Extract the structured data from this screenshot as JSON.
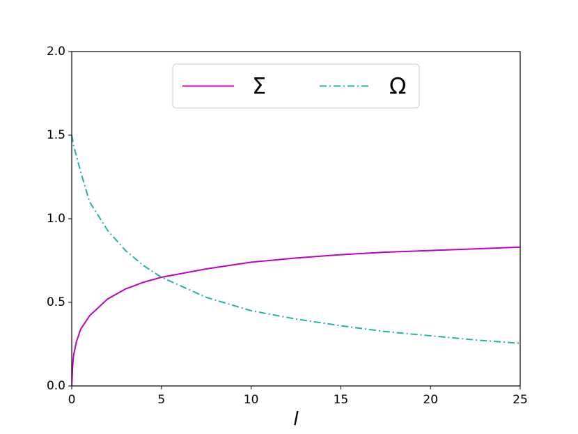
{
  "chart_data": {
    "type": "line",
    "x": [
      0,
      0.05,
      0.1,
      0.25,
      0.5,
      1,
      2,
      3,
      4,
      5,
      7.5,
      10,
      12.5,
      15,
      17.5,
      20,
      22.5,
      25
    ],
    "series": [
      {
        "name": "Σ",
        "color": "#bf00bf",
        "linestyle": "solid",
        "values": [
          0,
          0.12,
          0.18,
          0.26,
          0.34,
          0.42,
          0.52,
          0.58,
          0.62,
          0.65,
          0.7,
          0.74,
          0.765,
          0.785,
          0.8,
          0.81,
          0.82,
          0.83
        ]
      },
      {
        "name": "Ω",
        "color": "#20b2aa",
        "linestyle": "dashdot",
        "values": [
          1.5,
          1.47,
          1.44,
          1.38,
          1.28,
          1.1,
          0.93,
          0.81,
          0.72,
          0.65,
          0.53,
          0.45,
          0.4,
          0.36,
          0.325,
          0.3,
          0.275,
          0.255
        ]
      }
    ],
    "xlabel": "l",
    "xlim": [
      0,
      25
    ],
    "xticks": [
      0,
      5,
      10,
      15,
      20,
      25
    ],
    "ylim": [
      0,
      2
    ],
    "yticks": [
      {
        "value": 0,
        "label": "0.0"
      },
      {
        "value": 0.5,
        "label": "0.5"
      },
      {
        "value": 1,
        "label": "1.0"
      },
      {
        "value": 1.5,
        "label": "1.5"
      },
      {
        "value": 2,
        "label": "2.0"
      }
    ],
    "legend": "upper center",
    "grid": false
  }
}
